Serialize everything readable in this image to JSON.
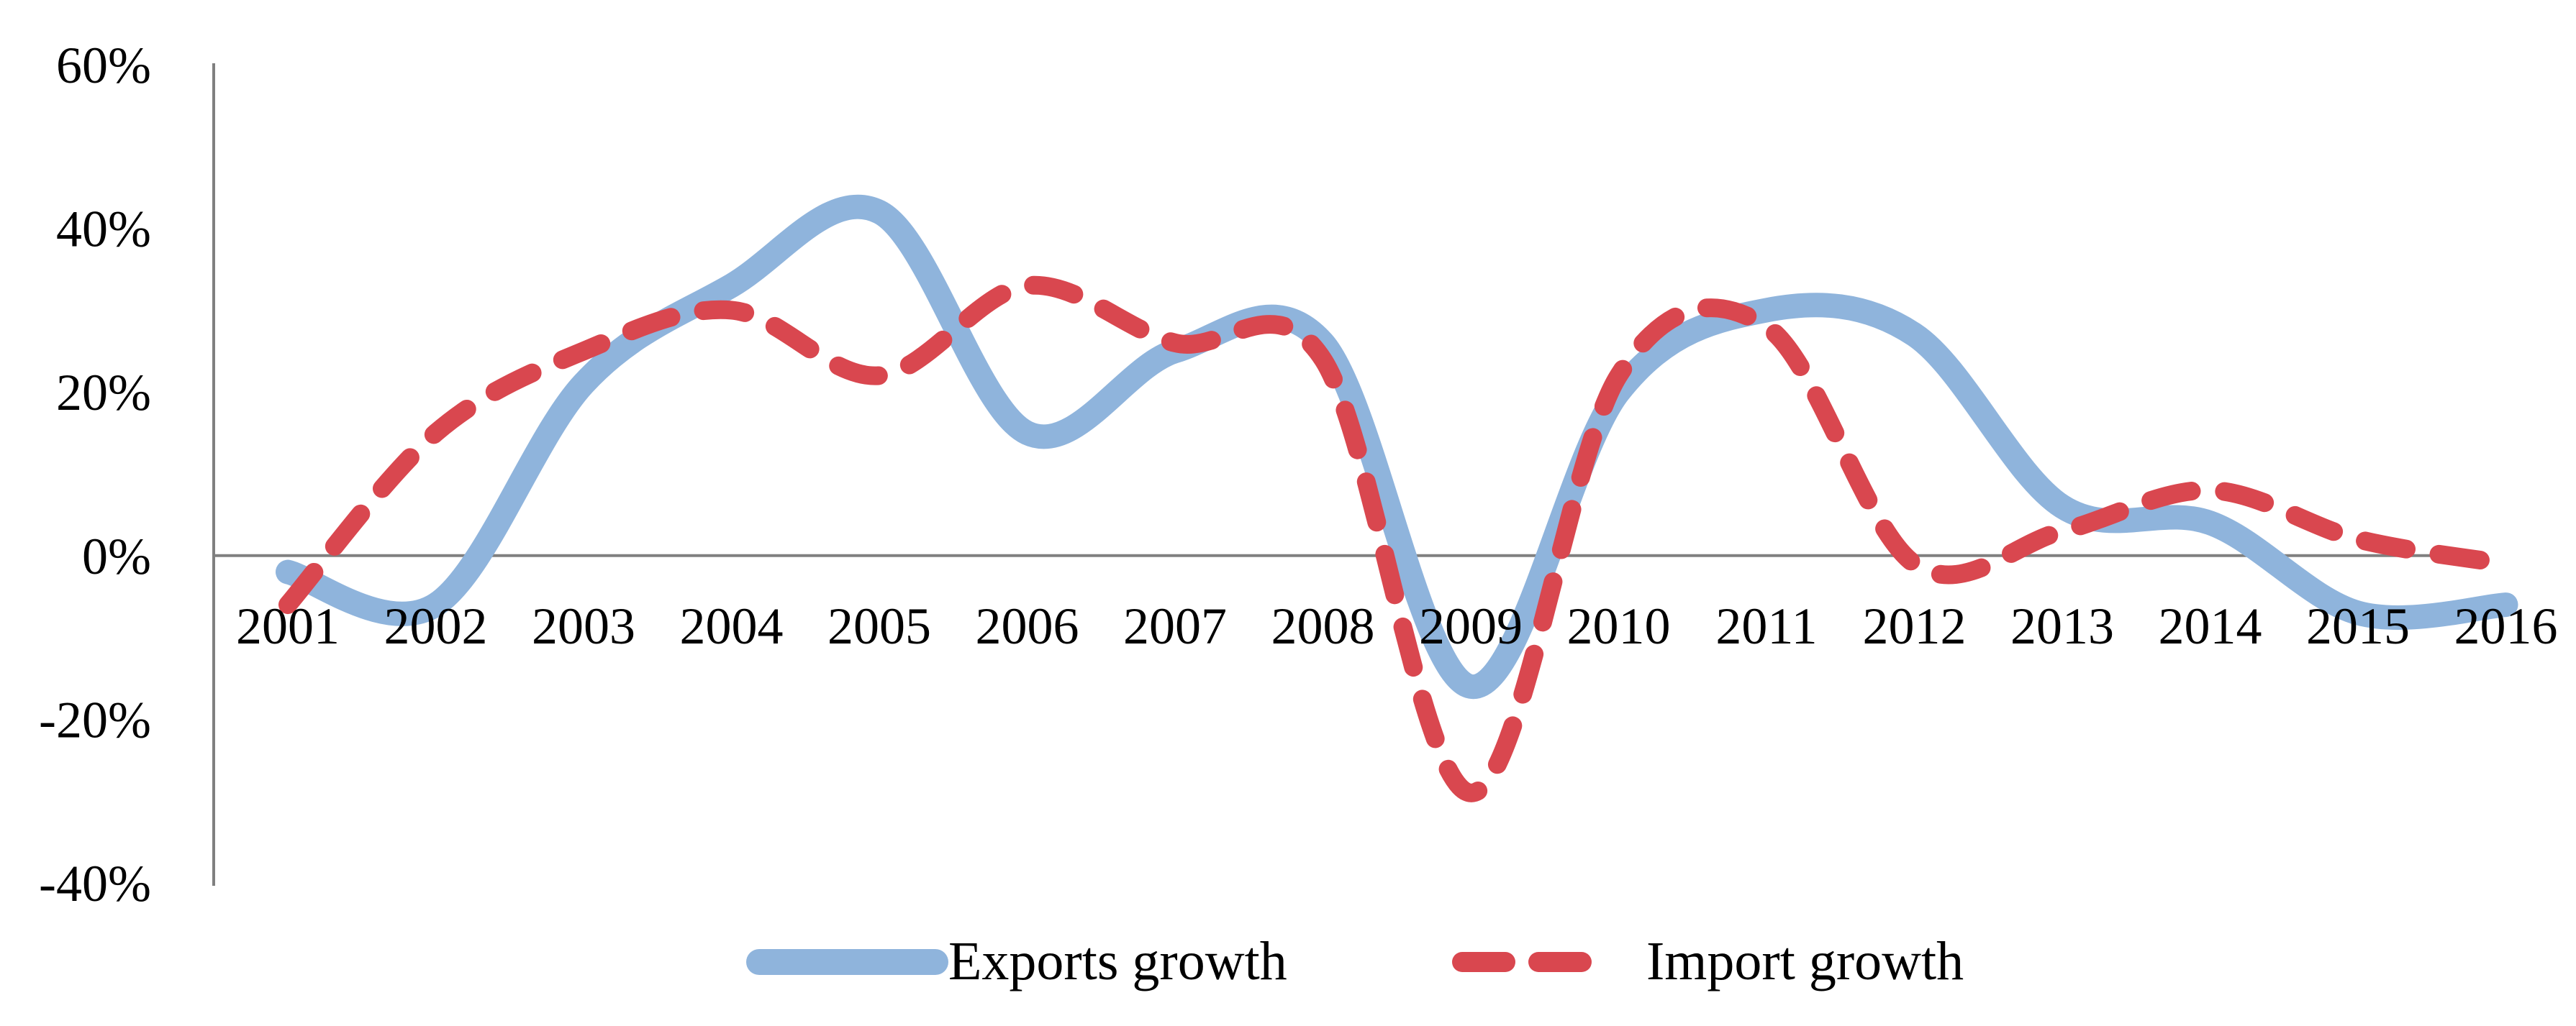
{
  "chart_data": {
    "type": "line",
    "title": "",
    "xlabel": "",
    "ylabel": "",
    "categories": [
      "2001",
      "2002",
      "2003",
      "2004",
      "2005",
      "2006",
      "2007",
      "2008",
      "2009",
      "2010",
      "2011",
      "2012",
      "2013",
      "2014",
      "2015",
      "2016"
    ],
    "ylim": [
      -40,
      60
    ],
    "yticks": [
      -40,
      -20,
      0,
      20,
      40,
      60
    ],
    "ytick_labels": [
      "-40%",
      "-20%",
      "0%",
      "20%",
      "40%",
      "60%"
    ],
    "series": [
      {
        "name": "Exports growth",
        "color": "#8fb4dc",
        "style": "solid",
        "values": [
          -2,
          -6,
          21,
          33,
          42,
          15,
          25,
          26,
          -16,
          20,
          30,
          27,
          6,
          4,
          -7,
          -6
        ]
      },
      {
        "name": "Import growth",
        "color": "#d9474f",
        "style": "dashed",
        "values": [
          -6,
          15,
          25,
          30,
          22,
          33,
          26,
          24,
          -29,
          22,
          28,
          -1,
          3,
          8,
          2,
          -1
        ]
      }
    ],
    "legend_position": "bottom-center",
    "grid": false
  }
}
